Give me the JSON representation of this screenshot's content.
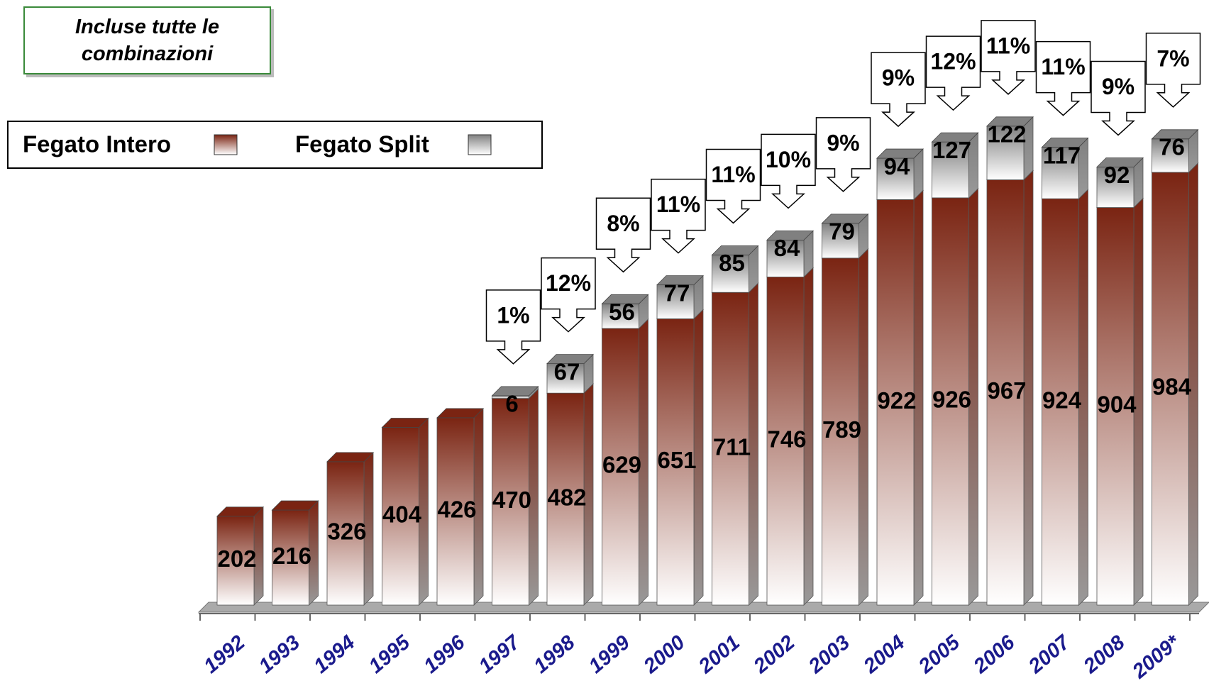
{
  "chart_data": {
    "type": "stacked_bar",
    "title": "Incluse tutte le combinazioni",
    "categories": [
      "1992",
      "1993",
      "1994",
      "1995",
      "1996",
      "1997",
      "1998",
      "1999",
      "2000",
      "2001",
      "2002",
      "2003",
      "2004",
      "2005",
      "2006",
      "2007",
      "2008",
      "2009*"
    ],
    "series": [
      {
        "name": "Fegato Intero",
        "color": "#7a2412",
        "values": [
          202,
          216,
          326,
          404,
          426,
          470,
          482,
          629,
          651,
          711,
          746,
          789,
          922,
          926,
          967,
          924,
          904,
          984
        ]
      },
      {
        "name": "Fegato Split",
        "color": "#808080",
        "values": [
          null,
          null,
          null,
          null,
          null,
          6,
          67,
          56,
          77,
          85,
          84,
          79,
          94,
          127,
          122,
          117,
          92,
          76
        ]
      }
    ],
    "annotations": [
      null,
      null,
      null,
      null,
      null,
      "1%",
      "12%",
      "8%",
      "11%",
      "11%",
      "10%",
      "9%",
      "9%",
      "12%",
      "11%",
      "11%",
      "9%",
      "7%"
    ]
  }
}
